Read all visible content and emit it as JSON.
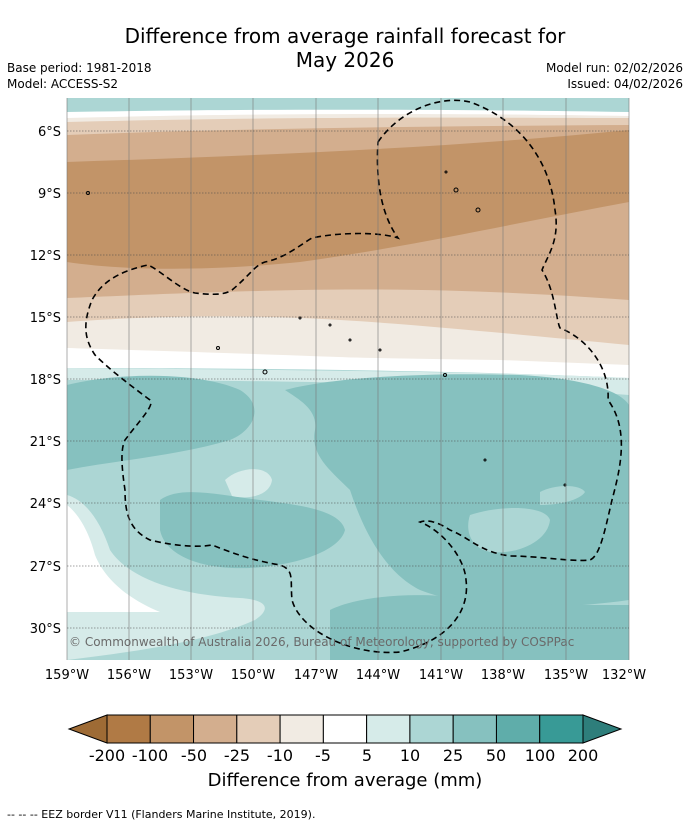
{
  "title": {
    "line1": "Difference from average rainfall forecast for",
    "line2": "May 2026"
  },
  "meta": {
    "base_period": "Base period: 1981-2018",
    "model": "Model: ACCESS-S2",
    "model_run": "Model run: 02/02/2026",
    "issued": "Issued: 04/02/2026"
  },
  "map": {
    "latitude_labels": [
      "6°S",
      "9°S",
      "12°S",
      "15°S",
      "18°S",
      "21°S",
      "24°S",
      "27°S",
      "30°S"
    ],
    "longitude_labels": [
      "159°W",
      "156°W",
      "153°W",
      "150°W",
      "147°W",
      "144°W",
      "141°W",
      "138°W",
      "135°W",
      "132°W"
    ],
    "copyright": "© Commonwealth of Australia 2026, Bureau of Meteorology, supported by COSPPac"
  },
  "colorbar": {
    "title": "Difference from average (mm)",
    "tick_labels": [
      "-200",
      "-100",
      "-50",
      "-25",
      "-10",
      "-5",
      "5",
      "10",
      "25",
      "50",
      "100",
      "200"
    ],
    "colors": [
      "#9e6b35",
      "#b07a45",
      "#c29468",
      "#d3ae8e",
      "#e4cdb8",
      "#f1ebe3",
      "#ffffff",
      "#d6ebe9",
      "#acd6d4",
      "#86c1bf",
      "#5fadaa",
      "#389a96",
      "#2e7e7b"
    ]
  },
  "legend_note": "-- -- -- EEZ border V11 (Flanders Marine Institute, 2019)."
}
